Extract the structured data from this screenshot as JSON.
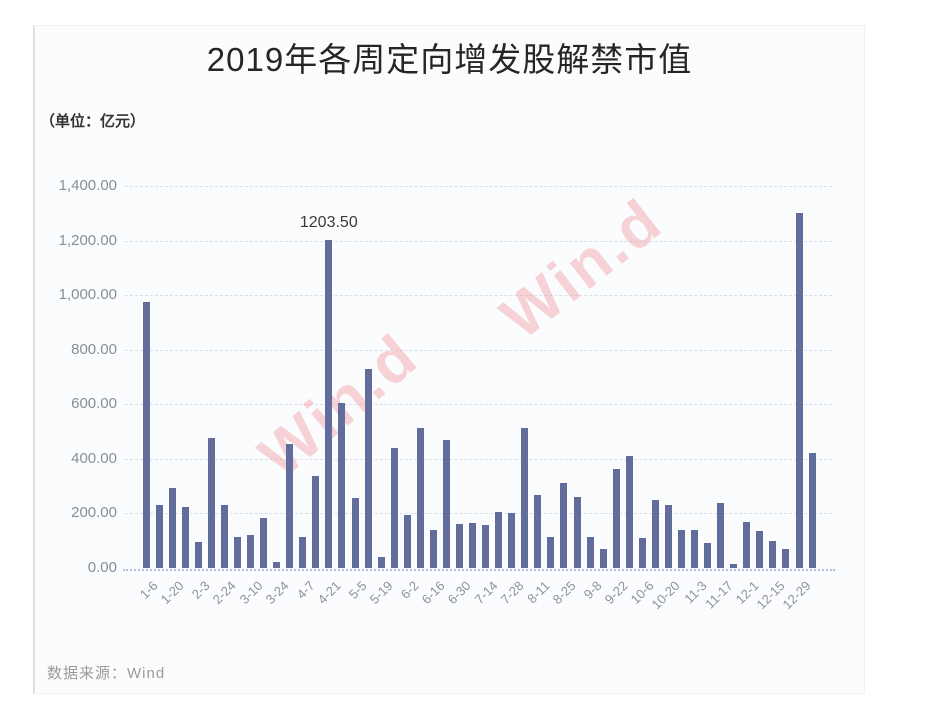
{
  "page": {
    "source_note": "数据来源：Wind",
    "watermark_text": "Win.d",
    "watermark_color": "#f09ea3",
    "background_color": "#fbfcfe",
    "bar_color": "#636d9c",
    "gridline_color": "#d9deeb",
    "axis_line_color": "#aebbdf"
  },
  "chart": {
    "title": "2019年各周定向增发股解禁市值",
    "unit_label": "（单位：亿元）",
    "annotation_text": "1203.50"
  },
  "chart_data": {
    "type": "bar",
    "title": "2019年各周定向增发股解禁市值",
    "xlabel": "",
    "ylabel": "亿元",
    "ylim": [
      0,
      1400
    ],
    "ytick_step": 200,
    "ytick_labels": [
      "1,400.00",
      "1,200.00",
      "1,000.00",
      "800.00",
      "600.00",
      "400.00",
      "200.00",
      "0.00"
    ],
    "grid": "dashed-horizontal",
    "legend_position": "none",
    "tick_labels": [
      "1-6",
      "1-20",
      "2-3",
      "2-24",
      "3-10",
      "3-24",
      "4-7",
      "4-21",
      "5-5",
      "5-19",
      "6-2",
      "6-16",
      "6-30",
      "7-14",
      "7-28",
      "8-11",
      "8-25",
      "9-8",
      "9-22",
      "10-6",
      "10-20",
      "11-3",
      "11-17",
      "12-1",
      "12-15",
      "12-29"
    ],
    "tick_every": 2,
    "values": [
      975,
      230,
      295,
      222,
      96,
      478,
      230,
      115,
      122,
      183,
      22,
      455,
      112,
      338,
      1203.5,
      605,
      258,
      730,
      40,
      440,
      195,
      515,
      140,
      468,
      162,
      166,
      158,
      205,
      200,
      515,
      268,
      112,
      312,
      262,
      112,
      70,
      362,
      412,
      110,
      248,
      232,
      140,
      140,
      90,
      238,
      15,
      168,
      135,
      100,
      70,
      1300,
      422
    ],
    "annotation": {
      "text": "1203.50",
      "bar_index": 14,
      "value": 1203.5
    }
  }
}
